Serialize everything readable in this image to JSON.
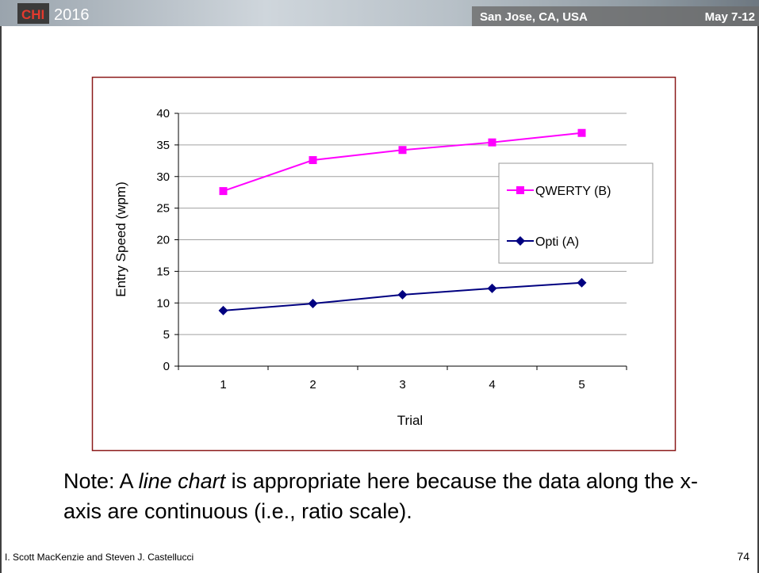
{
  "header": {
    "year": "2016",
    "location": "San Jose, CA, USA",
    "dates": "May 7-12"
  },
  "chart_data": {
    "type": "line",
    "x_label": "Trial",
    "y_label": "Entry Speed (wpm)",
    "categories": [
      1,
      2,
      3,
      4,
      5
    ],
    "series": [
      {
        "name": "QWERTY (B)",
        "color": "#ff00ff",
        "marker": "square",
        "values": [
          27.7,
          32.6,
          34.2,
          35.4,
          36.9
        ]
      },
      {
        "name": "Opti (A)",
        "color": "#000080",
        "marker": "diamond",
        "values": [
          8.8,
          9.9,
          11.3,
          12.3,
          13.2
        ]
      }
    ],
    "ylim": [
      0,
      40
    ],
    "yticks": [
      0,
      5,
      10,
      15,
      20,
      25,
      30,
      35,
      40
    ],
    "grid": true,
    "legend": "right"
  },
  "note": {
    "prefix": "Note: A ",
    "emphasis": "line chart",
    "suffix": " is appropriate here because the data along the x-axis are continuous (i.e., ratio scale)."
  },
  "footer": {
    "authors": "I. Scott MacKenzie and Steven J. Castellucci",
    "page": "74"
  }
}
